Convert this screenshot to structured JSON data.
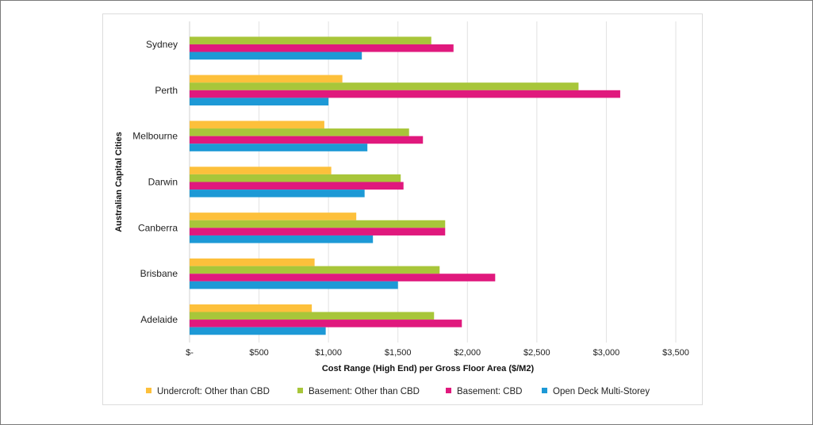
{
  "chart_data": {
    "type": "bar",
    "orientation": "horizontal",
    "categories": [
      "Sydney",
      "Perth",
      "Melbourne",
      "Darwin",
      "Canberra",
      "Brisbane",
      "Adelaide"
    ],
    "series": [
      {
        "name": "Undercroft: Other than CBD",
        "color": "#fdc03b",
        "values": [
          null,
          1100,
          970,
          1020,
          1200,
          900,
          880
        ]
      },
      {
        "name": "Basement: Other than CBD",
        "color": "#a8c63a",
        "values": [
          1740,
          2800,
          1580,
          1520,
          1840,
          1800,
          1760
        ]
      },
      {
        "name": "Basement: CBD",
        "color": "#e0197d",
        "values": [
          1900,
          3100,
          1680,
          1540,
          1840,
          2200,
          1960
        ]
      },
      {
        "name": "Open Deck Multi-Storey",
        "color": "#1d99d6",
        "values": [
          1240,
          1000,
          1280,
          1260,
          1320,
          1500,
          980
        ]
      }
    ],
    "xlabel": "Cost Range (High End) per Gross Floor Area ($/M2)",
    "ylabel": "Australian Capital Cities",
    "xlim": [
      0,
      3500
    ],
    "x_ticks": [
      0,
      500,
      1000,
      1500,
      2000,
      2500,
      3000,
      3500
    ],
    "x_tick_labels": [
      "$-",
      "$500",
      "$1,000",
      "$1,500",
      "$2,000",
      "$2,500",
      "$3,000",
      "$3,500"
    ],
    "grid": "vertical",
    "legend_position": "bottom"
  }
}
